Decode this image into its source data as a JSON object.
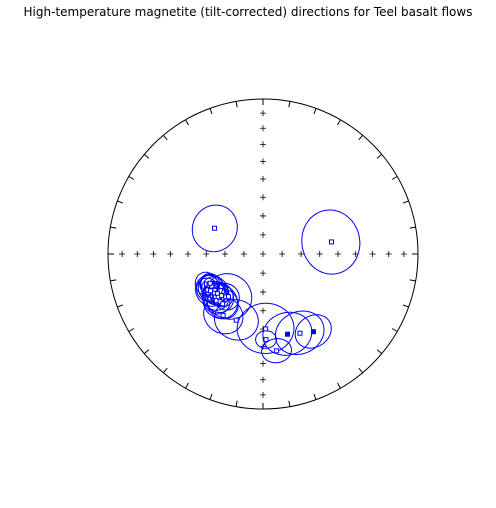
{
  "chart_data": {
    "type": "scatter",
    "subtype": "equal-area stereonet",
    "title": "High-temperature magnetite (tilt-corrected) directions for Teel basalt flows",
    "grid": "tick crosses every 10 degrees of inclination along N-S and E-W axes",
    "colors": {
      "circle": "#000000",
      "series": "#0000ff",
      "tick": "#000000"
    },
    "series": [
      {
        "points": [
          {
            "dec": 298,
            "inc": 61,
            "a95": 12,
            "hemisphere": "up"
          },
          {
            "dec": 242,
            "inc": 56,
            "a95": 6,
            "hemisphere": "up"
          },
          {
            "dec": 240,
            "inc": 57,
            "a95": 5,
            "hemisphere": "up"
          },
          {
            "dec": 237,
            "inc": 55,
            "a95": 6,
            "hemisphere": "up"
          },
          {
            "dec": 236,
            "inc": 57,
            "a95": 7,
            "hemisphere": "up"
          },
          {
            "dec": 235,
            "inc": 56,
            "a95": 8,
            "hemisphere": "up"
          },
          {
            "dec": 233,
            "inc": 58,
            "a95": 7,
            "hemisphere": "up"
          },
          {
            "dec": 238,
            "inc": 58,
            "a95": 6,
            "hemisphere": "up"
          },
          {
            "dec": 241,
            "inc": 58,
            "a95": 5,
            "hemisphere": "up"
          },
          {
            "dec": 231,
            "inc": 57,
            "a95": 6,
            "hemisphere": "up"
          },
          {
            "dec": 228,
            "inc": 56,
            "a95": 7,
            "hemisphere": "up"
          },
          {
            "dec": 229,
            "inc": 58,
            "a95": 6,
            "hemisphere": "up"
          },
          {
            "dec": 226,
            "inc": 57,
            "a95": 8,
            "hemisphere": "up"
          },
          {
            "dec": 225,
            "inc": 55,
            "a95": 7,
            "hemisphere": "up"
          },
          {
            "dec": 222,
            "inc": 56,
            "a95": 9,
            "hemisphere": "up"
          },
          {
            "dec": 219,
            "inc": 56,
            "a95": 8,
            "hemisphere": "up"
          },
          {
            "dec": 225,
            "inc": 59,
            "a95": 6,
            "hemisphere": "up"
          },
          {
            "dec": 221,
            "inc": 60,
            "a95": 7,
            "hemisphere": "up"
          },
          {
            "dec": 213,
            "inc": 51,
            "a95": 10,
            "hemisphere": "up"
          },
          {
            "dec": 202,
            "inc": 52,
            "a95": 11,
            "hemisphere": "up"
          },
          {
            "dec": 219,
            "inc": 61,
            "a95": 12,
            "hemisphere": "up"
          },
          {
            "dec": 178,
            "inc": 50,
            "a95": 14,
            "hemisphere": "up"
          },
          {
            "dec": 178,
            "inc": 44,
            "a95": 5,
            "hemisphere": "up"
          },
          {
            "dec": 172,
            "inc": 37,
            "a95": 7,
            "hemisphere": "up"
          },
          {
            "dec": 155,
            "inc": 43,
            "a95": 12,
            "hemisphere": "up"
          },
          {
            "dec": 80,
            "inc": 53,
            "a95": 16,
            "hemisphere": "up"
          },
          {
            "dec": 163,
            "inc": 45,
            "a95": 12,
            "hemisphere": "down"
          },
          {
            "dec": 147,
            "inc": 40,
            "a95": 9,
            "hemisphere": "down"
          }
        ]
      }
    ]
  }
}
